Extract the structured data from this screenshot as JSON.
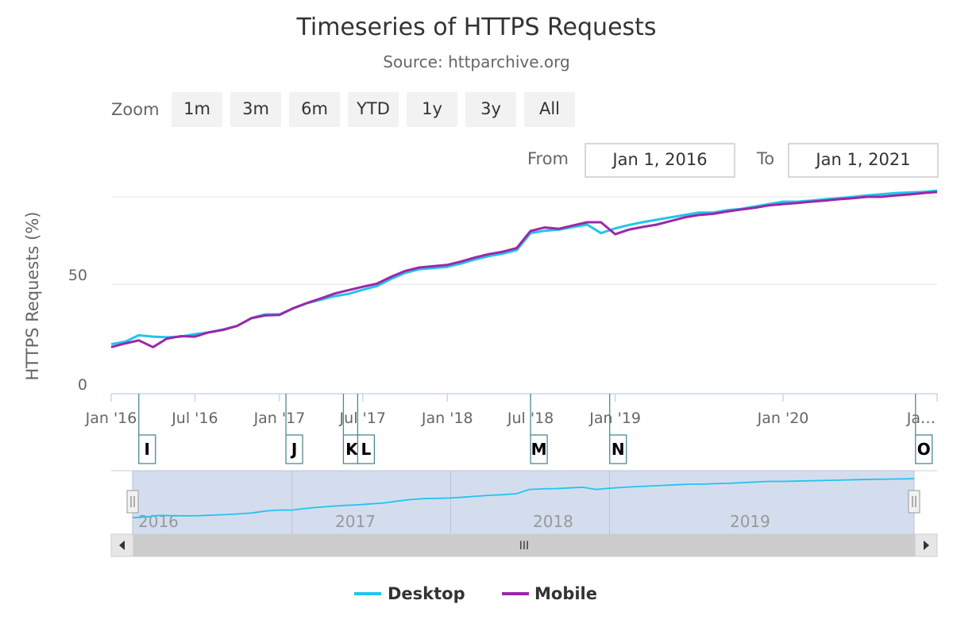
{
  "title": "Timeseries of HTTPS Requests",
  "subtitle": "Source: httparchive.org",
  "range_selector": {
    "zoom_label": "Zoom",
    "buttons": [
      "1m",
      "3m",
      "6m",
      "YTD",
      "1y",
      "3y",
      "All"
    ],
    "from_label": "From",
    "from_value": "Jan 1, 2016",
    "to_label": "To",
    "to_value": "Jan 1, 2021"
  },
  "colors": {
    "desktop": "#22c4f0",
    "mobile": "#9c27a8",
    "grid": "#e6e6e6",
    "flag": "#4c8a94",
    "navigator_fill": "#c9d5ea"
  },
  "navigator": {
    "years": [
      "2016",
      "2017",
      "2018",
      "2019"
    ],
    "scroll_grip": "III"
  },
  "chart_data": {
    "type": "line",
    "title": "Timeseries of HTTPS Requests",
    "subtitle": "Source: httparchive.org",
    "ylabel": "HTTPS Requests (%)",
    "ylim": [
      0,
      90
    ],
    "y_ticks": [
      0,
      50
    ],
    "x_ticks": [
      "Jan '16",
      "Jul '16",
      "Jan '17",
      "Jul '17",
      "Jan '18",
      "Jul '18",
      "Jan '19",
      "Jan '20",
      "Ja…"
    ],
    "x_range": [
      "2016-01-01",
      "2020-12-01"
    ],
    "grid": true,
    "legend": "bottom-center",
    "series": [
      {
        "name": "Desktop",
        "points": [
          [
            "2016-01-01",
            22.6
          ],
          [
            "2016-02-01",
            23.8
          ],
          [
            "2016-03-01",
            26.7
          ],
          [
            "2016-04-01",
            26.1
          ],
          [
            "2016-05-01",
            25.8
          ],
          [
            "2016-06-01",
            26.1
          ],
          [
            "2016-07-01",
            27.2
          ],
          [
            "2016-08-01",
            28.0
          ],
          [
            "2016-09-01",
            29.4
          ],
          [
            "2016-10-01",
            31.0
          ],
          [
            "2016-11-01",
            34.6
          ],
          [
            "2016-12-01",
            36.3
          ],
          [
            "2017-01-01",
            36.3
          ],
          [
            "2017-02-01",
            39.1
          ],
          [
            "2017-03-01",
            41.3
          ],
          [
            "2017-04-01",
            43.0
          ],
          [
            "2017-05-01",
            44.6
          ],
          [
            "2017-06-01",
            45.7
          ],
          [
            "2017-07-01",
            47.5
          ],
          [
            "2017-08-01",
            49.2
          ],
          [
            "2017-09-01",
            52.5
          ],
          [
            "2017-10-01",
            55.2
          ],
          [
            "2017-11-01",
            56.9
          ],
          [
            "2017-12-01",
            57.4
          ],
          [
            "2018-01-01",
            58.0
          ],
          [
            "2018-02-01",
            59.6
          ],
          [
            "2018-03-01",
            61.3
          ],
          [
            "2018-04-01",
            62.9
          ],
          [
            "2018-05-01",
            64.0
          ],
          [
            "2018-06-01",
            65.7
          ],
          [
            "2018-07-01",
            73.4
          ],
          [
            "2018-08-01",
            74.5
          ],
          [
            "2018-09-01",
            75.0
          ],
          [
            "2018-10-01",
            76.2
          ],
          [
            "2018-11-01",
            77.3
          ],
          [
            "2018-12-01",
            73.4
          ],
          [
            "2019-01-01",
            75.6
          ],
          [
            "2019-02-01",
            77.2
          ],
          [
            "2019-03-01",
            78.4
          ],
          [
            "2019-04-01",
            79.5
          ],
          [
            "2019-05-01",
            80.6
          ],
          [
            "2019-06-01",
            81.7
          ],
          [
            "2019-07-01",
            82.8
          ],
          [
            "2019-08-01",
            82.8
          ],
          [
            "2019-09-01",
            83.9
          ],
          [
            "2019-10-01",
            84.5
          ],
          [
            "2019-11-01",
            85.6
          ],
          [
            "2019-12-01",
            86.7
          ],
          [
            "2020-01-01",
            87.8
          ],
          [
            "2020-02-01",
            87.8
          ],
          [
            "2020-03-01",
            88.3
          ],
          [
            "2020-04-01",
            88.9
          ],
          [
            "2020-05-01",
            89.4
          ],
          [
            "2020-06-01",
            90.0
          ],
          [
            "2020-07-01",
            90.6
          ],
          [
            "2020-08-01",
            91.2
          ],
          [
            "2020-09-01",
            91.7
          ],
          [
            "2020-10-01",
            92.0
          ],
          [
            "2020-11-01",
            92.3
          ],
          [
            "2020-12-01",
            92.8
          ]
        ]
      },
      {
        "name": "Mobile",
        "points": [
          [
            "2016-01-01",
            21.3
          ],
          [
            "2016-02-01",
            23.0
          ],
          [
            "2016-03-01",
            24.4
          ],
          [
            "2016-04-01",
            21.3
          ],
          [
            "2016-05-01",
            25.2
          ],
          [
            "2016-06-01",
            26.3
          ],
          [
            "2016-07-01",
            26.1
          ],
          [
            "2016-08-01",
            28.1
          ],
          [
            "2016-09-01",
            29.2
          ],
          [
            "2016-10-01",
            31.0
          ],
          [
            "2016-11-01",
            34.5
          ],
          [
            "2016-12-01",
            35.8
          ],
          [
            "2017-01-01",
            36.0
          ],
          [
            "2017-02-01",
            39.2
          ],
          [
            "2017-03-01",
            41.4
          ],
          [
            "2017-04-01",
            43.6
          ],
          [
            "2017-05-01",
            45.8
          ],
          [
            "2017-06-01",
            47.4
          ],
          [
            "2017-07-01",
            48.9
          ],
          [
            "2017-08-01",
            50.3
          ],
          [
            "2017-09-01",
            53.5
          ],
          [
            "2017-10-01",
            56.1
          ],
          [
            "2017-11-01",
            57.7
          ],
          [
            "2017-12-01",
            58.3
          ],
          [
            "2018-01-01",
            58.9
          ],
          [
            "2018-02-01",
            60.5
          ],
          [
            "2018-03-01",
            62.2
          ],
          [
            "2018-04-01",
            63.8
          ],
          [
            "2018-05-01",
            64.9
          ],
          [
            "2018-06-01",
            66.6
          ],
          [
            "2018-07-01",
            74.4
          ],
          [
            "2018-08-01",
            76.0
          ],
          [
            "2018-09-01",
            75.4
          ],
          [
            "2018-10-01",
            76.9
          ],
          [
            "2018-11-01",
            78.4
          ],
          [
            "2018-12-01",
            78.4
          ],
          [
            "2019-01-01",
            72.9
          ],
          [
            "2019-02-01",
            75.1
          ],
          [
            "2019-03-01",
            76.2
          ],
          [
            "2019-04-01",
            77.3
          ],
          [
            "2019-05-01",
            78.9
          ],
          [
            "2019-06-01",
            80.6
          ],
          [
            "2019-07-01",
            81.7
          ],
          [
            "2019-08-01",
            82.2
          ],
          [
            "2019-09-01",
            83.3
          ],
          [
            "2019-10-01",
            84.2
          ],
          [
            "2019-11-01",
            85.0
          ],
          [
            "2019-12-01",
            86.1
          ],
          [
            "2020-01-01",
            86.7
          ],
          [
            "2020-02-01",
            87.2
          ],
          [
            "2020-03-01",
            87.8
          ],
          [
            "2020-04-01",
            88.3
          ],
          [
            "2020-05-01",
            88.9
          ],
          [
            "2020-06-01",
            89.4
          ],
          [
            "2020-07-01",
            90.0
          ],
          [
            "2020-08-01",
            90.0
          ],
          [
            "2020-09-01",
            90.6
          ],
          [
            "2020-10-01",
            91.1
          ],
          [
            "2020-11-01",
            91.7
          ],
          [
            "2020-12-01",
            92.2
          ]
        ]
      }
    ],
    "flags": [
      {
        "label": "I",
        "date": "2016-03-01"
      },
      {
        "label": "J",
        "date": "2017-01-15"
      },
      {
        "label": "K",
        "date": "2017-05-20"
      },
      {
        "label": "L",
        "date": "2017-06-20"
      },
      {
        "label": "M",
        "date": "2018-07-01"
      },
      {
        "label": "N",
        "date": "2018-12-20"
      },
      {
        "label": "O",
        "date": "2020-10-15"
      }
    ]
  }
}
